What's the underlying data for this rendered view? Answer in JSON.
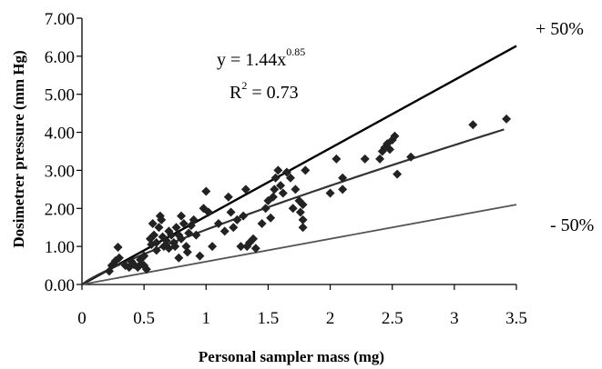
{
  "chart_data": {
    "type": "scatter",
    "title": "",
    "xlabel": "Personal sampler mass (mg)",
    "ylabel": "Dosimetrer pressure (mm Hg)",
    "xlim": [
      0,
      3.5
    ],
    "ylim": [
      0,
      7.0
    ],
    "x_ticks": [
      "0",
      "0.5",
      "1",
      "1.5",
      "2",
      "2.5",
      "3",
      "3.5"
    ],
    "y_ticks": [
      "0.00",
      "1.00",
      "2.00",
      "3.00",
      "4.00",
      "5.00",
      "6.00",
      "7.00"
    ],
    "grid": false,
    "legend": "none",
    "annotations": {
      "equation_base": "y = 1.44x",
      "equation_exponent": "0.85",
      "r2_text": "R",
      "r2_exp": "2",
      "r2_value": " = 0.73",
      "upper_label": "+ 50%",
      "lower_label": "- 50%"
    },
    "fit": {
      "coefficient": 1.44,
      "exponent": 0.85,
      "r2": 0.73,
      "x_range": [
        0,
        3.4
      ]
    },
    "band_lines": [
      {
        "name": "+ 50%",
        "color": "#000000",
        "points": [
          [
            0,
            0
          ],
          [
            3.5,
            6.27
          ]
        ]
      },
      {
        "name": "- 50%",
        "color": "#555555",
        "points": [
          [
            0,
            0
          ],
          [
            3.5,
            2.1
          ]
        ]
      }
    ],
    "marker_color": "#222222",
    "series": [
      {
        "points": [
          [
            0.22,
            0.35
          ],
          [
            0.24,
            0.5
          ],
          [
            0.27,
            0.62
          ],
          [
            0.29,
            0.98
          ],
          [
            0.3,
            0.7
          ],
          [
            0.35,
            0.5
          ],
          [
            0.38,
            0.45
          ],
          [
            0.4,
            0.6
          ],
          [
            0.42,
            0.52
          ],
          [
            0.45,
            0.45
          ],
          [
            0.47,
            0.65
          ],
          [
            0.48,
            0.55
          ],
          [
            0.5,
            0.75
          ],
          [
            0.5,
            0.5
          ],
          [
            0.52,
            0.4
          ],
          [
            0.55,
            1.2
          ],
          [
            0.56,
            1.05
          ],
          [
            0.57,
            1.6
          ],
          [
            0.58,
            1.3
          ],
          [
            0.6,
            0.9
          ],
          [
            0.6,
            1.1
          ],
          [
            0.62,
            1.5
          ],
          [
            0.63,
            1.8
          ],
          [
            0.64,
            1.7
          ],
          [
            0.65,
            1.25
          ],
          [
            0.66,
            1.0
          ],
          [
            0.68,
            1.15
          ],
          [
            0.7,
            0.95
          ],
          [
            0.7,
            1.4
          ],
          [
            0.72,
            1.3
          ],
          [
            0.74,
            1.1
          ],
          [
            0.75,
            1.0
          ],
          [
            0.76,
            1.5
          ],
          [
            0.78,
            0.7
          ],
          [
            0.78,
            1.3
          ],
          [
            0.8,
            1.2
          ],
          [
            0.8,
            1.8
          ],
          [
            0.82,
            1.6
          ],
          [
            0.84,
            1.0
          ],
          [
            0.85,
            0.85
          ],
          [
            0.86,
            1.35
          ],
          [
            0.88,
            1.55
          ],
          [
            0.9,
            1.7
          ],
          [
            0.92,
            1.3
          ],
          [
            0.95,
            0.75
          ],
          [
            0.98,
            2.0
          ],
          [
            1.0,
            2.45
          ],
          [
            1.02,
            1.9
          ],
          [
            1.05,
            1.0
          ],
          [
            1.1,
            1.6
          ],
          [
            1.15,
            1.4
          ],
          [
            1.18,
            2.3
          ],
          [
            1.2,
            1.9
          ],
          [
            1.22,
            1.5
          ],
          [
            1.25,
            1.7
          ],
          [
            1.28,
            1.0
          ],
          [
            1.3,
            1.8
          ],
          [
            1.32,
            2.5
          ],
          [
            1.33,
            1.0
          ],
          [
            1.35,
            1.1
          ],
          [
            1.38,
            1.2
          ],
          [
            1.4,
            0.95
          ],
          [
            1.45,
            1.6
          ],
          [
            1.48,
            2.0
          ],
          [
            1.5,
            2.2
          ],
          [
            1.52,
            1.75
          ],
          [
            1.54,
            2.3
          ],
          [
            1.55,
            2.5
          ],
          [
            1.56,
            2.8
          ],
          [
            1.58,
            3.0
          ],
          [
            1.6,
            2.6
          ],
          [
            1.62,
            2.4
          ],
          [
            1.65,
            2.95
          ],
          [
            1.68,
            2.8
          ],
          [
            1.7,
            2.0
          ],
          [
            1.72,
            2.5
          ],
          [
            1.75,
            2.2
          ],
          [
            1.76,
            1.9
          ],
          [
            1.78,
            2.1
          ],
          [
            1.78,
            1.5
          ],
          [
            1.78,
            1.7
          ],
          [
            1.8,
            3.0
          ],
          [
            2.0,
            2.4
          ],
          [
            2.05,
            3.3
          ],
          [
            2.1,
            2.8
          ],
          [
            2.1,
            2.5
          ],
          [
            2.28,
            3.3
          ],
          [
            2.4,
            3.3
          ],
          [
            2.42,
            3.5
          ],
          [
            2.44,
            3.6
          ],
          [
            2.46,
            3.7
          ],
          [
            2.48,
            3.55
          ],
          [
            2.5,
            3.8
          ],
          [
            2.52,
            3.9
          ],
          [
            2.54,
            2.9
          ],
          [
            2.65,
            3.35
          ],
          [
            3.15,
            4.2
          ],
          [
            3.42,
            4.35
          ]
        ]
      }
    ]
  }
}
